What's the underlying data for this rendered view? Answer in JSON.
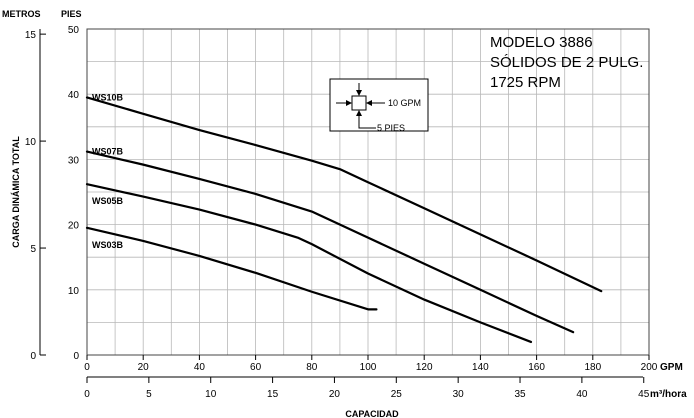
{
  "chart_data": {
    "type": "line",
    "model_lines": [
      "MODELO 3886",
      "SÓLIDOS DE 2 PULG.",
      "1725 RPM"
    ],
    "ylabel": "CARGA DINÁMICA TOTAL",
    "xlabel": "CAPACIDAD",
    "y_left_unit": "METROS",
    "y_right_unit": "PIES",
    "x_unit_primary": "GPM",
    "x_unit_secondary": "m³/hora",
    "xlim_gpm": [
      0,
      200
    ],
    "ylim_pies": [
      0,
      50
    ],
    "grid": true,
    "gpm_ticks": [
      "0",
      "20",
      "40",
      "60",
      "80",
      "100",
      "120",
      "140",
      "160",
      "180",
      "200"
    ],
    "pies_ticks": [
      "0",
      "10",
      "20",
      "30",
      "40",
      "50"
    ],
    "metros_ticks": [
      "0",
      "5",
      "10",
      "15"
    ],
    "m3h_ticks": [
      "0",
      "5",
      "10",
      "15",
      "20",
      "25",
      "30",
      "35",
      "40",
      "45"
    ],
    "grid_legend": {
      "h_label": "10 GPM",
      "v_label": "5 PIES"
    },
    "series": [
      {
        "name": "WS10B",
        "points": [
          [
            0,
            39.5
          ],
          [
            20,
            37
          ],
          [
            40,
            34.5
          ],
          [
            60,
            32.2
          ],
          [
            80,
            29.8
          ],
          [
            90,
            28.5
          ],
          [
            100,
            26.5
          ],
          [
            120,
            22.5
          ],
          [
            140,
            18.5
          ],
          [
            160,
            14.5
          ],
          [
            183,
            9.8
          ]
        ]
      },
      {
        "name": "WS07B",
        "points": [
          [
            0,
            31.2
          ],
          [
            20,
            29.2
          ],
          [
            40,
            27
          ],
          [
            60,
            24.7
          ],
          [
            80,
            22
          ],
          [
            100,
            18
          ],
          [
            120,
            14
          ],
          [
            140,
            10
          ],
          [
            160,
            6
          ],
          [
            173,
            3.5
          ]
        ]
      },
      {
        "name": "WS05B",
        "points": [
          [
            0,
            26.2
          ],
          [
            20,
            24.3
          ],
          [
            40,
            22.3
          ],
          [
            60,
            20
          ],
          [
            75,
            18
          ],
          [
            80,
            17
          ],
          [
            100,
            12.5
          ],
          [
            120,
            8.5
          ],
          [
            140,
            5
          ],
          [
            158,
            2
          ]
        ]
      },
      {
        "name": "WS03B",
        "points": [
          [
            0,
            19.5
          ],
          [
            20,
            17.5
          ],
          [
            40,
            15.2
          ],
          [
            60,
            12.6
          ],
          [
            80,
            9.7
          ],
          [
            100,
            7
          ],
          [
            103,
            7
          ]
        ]
      }
    ]
  }
}
